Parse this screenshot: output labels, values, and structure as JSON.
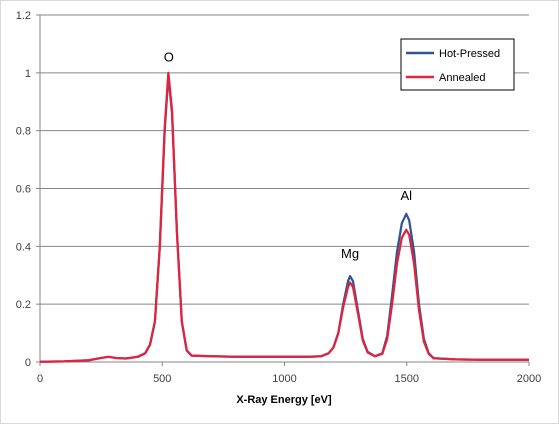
{
  "chart_data": {
    "type": "line",
    "title": "",
    "xlabel": "X-Ray Energy [eV]",
    "ylabel": "",
    "xlim": [
      0,
      2000
    ],
    "ylim": [
      0,
      1.2
    ],
    "x_ticks": [
      "0",
      "500",
      "1000",
      "1500",
      "2000"
    ],
    "y_ticks": [
      "0",
      "0.2",
      "0.4",
      "0.6",
      "0.8",
      "1",
      "1.2"
    ],
    "grid": "horizontal",
    "legend_position": "top-right",
    "annotations": [
      {
        "text": "O",
        "x": 527,
        "y": 1.04
      },
      {
        "text": "Mg",
        "x": 1268,
        "y": 0.36
      },
      {
        "text": "Al",
        "x": 1498,
        "y": 0.56
      }
    ],
    "series": [
      {
        "name": "Hot-Pressed",
        "color": "#2f5597",
        "points": [
          [
            0,
            0.001
          ],
          [
            100,
            0.002
          ],
          [
            200,
            0.006
          ],
          [
            250,
            0.014
          ],
          [
            280,
            0.018
          ],
          [
            310,
            0.014
          ],
          [
            350,
            0.012
          ],
          [
            400,
            0.018
          ],
          [
            430,
            0.03
          ],
          [
            450,
            0.06
          ],
          [
            470,
            0.14
          ],
          [
            490,
            0.4
          ],
          [
            510,
            0.8
          ],
          [
            525,
            0.99
          ],
          [
            540,
            0.86
          ],
          [
            560,
            0.45
          ],
          [
            580,
            0.14
          ],
          [
            600,
            0.04
          ],
          [
            620,
            0.022
          ],
          [
            700,
            0.02
          ],
          [
            800,
            0.018
          ],
          [
            1000,
            0.018
          ],
          [
            1100,
            0.018
          ],
          [
            1150,
            0.02
          ],
          [
            1180,
            0.03
          ],
          [
            1200,
            0.05
          ],
          [
            1220,
            0.1
          ],
          [
            1240,
            0.2
          ],
          [
            1260,
            0.28
          ],
          [
            1268,
            0.297
          ],
          [
            1280,
            0.28
          ],
          [
            1300,
            0.18
          ],
          [
            1320,
            0.08
          ],
          [
            1340,
            0.035
          ],
          [
            1370,
            0.02
          ],
          [
            1400,
            0.03
          ],
          [
            1420,
            0.09
          ],
          [
            1440,
            0.23
          ],
          [
            1460,
            0.38
          ],
          [
            1480,
            0.48
          ],
          [
            1498,
            0.512
          ],
          [
            1510,
            0.49
          ],
          [
            1530,
            0.38
          ],
          [
            1550,
            0.2
          ],
          [
            1570,
            0.08
          ],
          [
            1590,
            0.03
          ],
          [
            1610,
            0.013
          ],
          [
            1700,
            0.009
          ],
          [
            1800,
            0.008
          ],
          [
            2000,
            0.008
          ]
        ]
      },
      {
        "name": "Annealed",
        "color": "#e0233e",
        "points": [
          [
            0,
            0.001
          ],
          [
            100,
            0.002
          ],
          [
            200,
            0.006
          ],
          [
            250,
            0.014
          ],
          [
            280,
            0.018
          ],
          [
            310,
            0.014
          ],
          [
            350,
            0.012
          ],
          [
            400,
            0.018
          ],
          [
            430,
            0.03
          ],
          [
            450,
            0.06
          ],
          [
            470,
            0.14
          ],
          [
            490,
            0.4
          ],
          [
            510,
            0.81
          ],
          [
            525,
            1.0
          ],
          [
            540,
            0.87
          ],
          [
            560,
            0.45
          ],
          [
            580,
            0.14
          ],
          [
            600,
            0.04
          ],
          [
            620,
            0.022
          ],
          [
            700,
            0.02
          ],
          [
            800,
            0.018
          ],
          [
            1000,
            0.018
          ],
          [
            1100,
            0.018
          ],
          [
            1150,
            0.02
          ],
          [
            1180,
            0.03
          ],
          [
            1200,
            0.05
          ],
          [
            1220,
            0.1
          ],
          [
            1240,
            0.19
          ],
          [
            1260,
            0.26
          ],
          [
            1268,
            0.275
          ],
          [
            1280,
            0.26
          ],
          [
            1300,
            0.17
          ],
          [
            1320,
            0.075
          ],
          [
            1340,
            0.033
          ],
          [
            1370,
            0.02
          ],
          [
            1400,
            0.028
          ],
          [
            1420,
            0.08
          ],
          [
            1440,
            0.2
          ],
          [
            1460,
            0.34
          ],
          [
            1480,
            0.43
          ],
          [
            1498,
            0.457
          ],
          [
            1510,
            0.44
          ],
          [
            1530,
            0.34
          ],
          [
            1550,
            0.18
          ],
          [
            1570,
            0.07
          ],
          [
            1590,
            0.028
          ],
          [
            1610,
            0.013
          ],
          [
            1700,
            0.009
          ],
          [
            1800,
            0.008
          ],
          [
            2000,
            0.008
          ]
        ]
      }
    ]
  }
}
